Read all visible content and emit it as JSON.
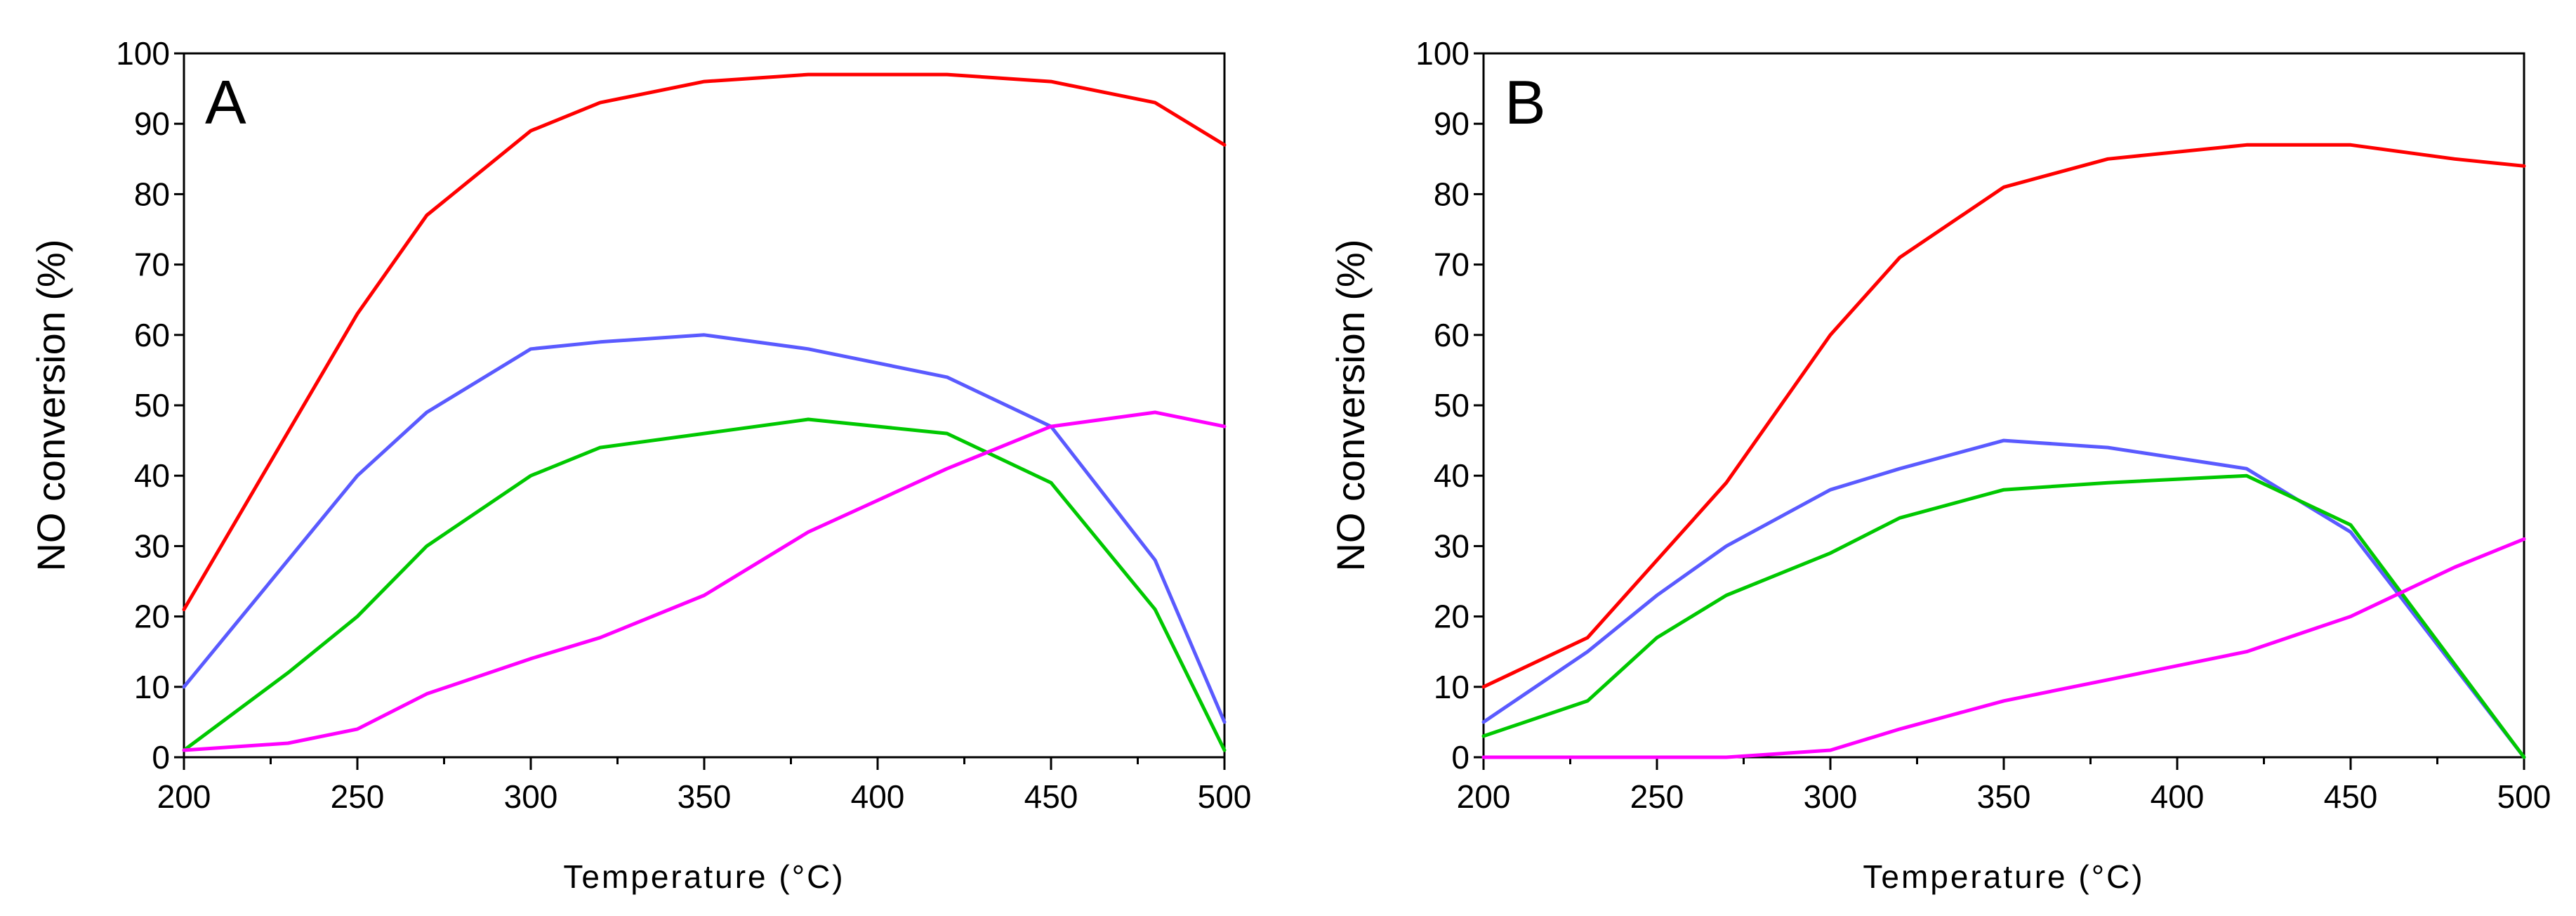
{
  "chart_data": [
    {
      "type": "line",
      "panel_label": "A",
      "xlabel": "Temperature (°C)",
      "ylabel": "NO conversion (%)",
      "xlim": [
        200,
        500
      ],
      "ylim": [
        0,
        100
      ],
      "xticks": [
        200,
        250,
        300,
        350,
        400,
        450,
        500
      ],
      "yticks": [
        0,
        10,
        20,
        30,
        40,
        50,
        60,
        70,
        80,
        90,
        100
      ],
      "series": [
        {
          "color": "#ff0000",
          "x": [
            200,
            250,
            270,
            300,
            320,
            350,
            380,
            420,
            450,
            480,
            500
          ],
          "y": [
            21,
            63,
            77,
            89,
            93,
            96,
            97,
            97,
            96,
            93,
            87
          ]
        },
        {
          "color": "#5a5aff",
          "x": [
            200,
            250,
            270,
            300,
            320,
            350,
            380,
            420,
            450,
            480,
            500
          ],
          "y": [
            10,
            40,
            49,
            58,
            59,
            60,
            58,
            54,
            47,
            28,
            5
          ]
        },
        {
          "color": "#00c800",
          "x": [
            200,
            230,
            250,
            270,
            300,
            320,
            350,
            380,
            420,
            450,
            480,
            500
          ],
          "y": [
            1,
            12,
            20,
            30,
            40,
            44,
            46,
            48,
            46,
            39,
            21,
            1
          ]
        },
        {
          "color": "#ff00ff",
          "x": [
            200,
            230,
            250,
            270,
            300,
            320,
            350,
            380,
            420,
            450,
            480,
            500
          ],
          "y": [
            1,
            2,
            4,
            9,
            14,
            17,
            23,
            32,
            41,
            47,
            49,
            47
          ]
        }
      ]
    },
    {
      "type": "line",
      "panel_label": "B",
      "xlabel": "Temperature (°C)",
      "ylabel": "NO conversion (%)",
      "xlim": [
        200,
        500
      ],
      "ylim": [
        0,
        100
      ],
      "xticks": [
        200,
        250,
        300,
        350,
        400,
        450,
        500
      ],
      "yticks": [
        0,
        10,
        20,
        30,
        40,
        50,
        60,
        70,
        80,
        90,
        100
      ],
      "series": [
        {
          "color": "#ff0000",
          "x": [
            200,
            230,
            270,
            300,
            320,
            350,
            380,
            420,
            450,
            480,
            500
          ],
          "y": [
            10,
            17,
            39,
            60,
            71,
            81,
            85,
            87,
            87,
            85,
            84
          ]
        },
        {
          "color": "#5a5aff",
          "x": [
            200,
            230,
            250,
            270,
            300,
            320,
            350,
            380,
            420,
            450,
            500
          ],
          "y": [
            5,
            15,
            23,
            30,
            38,
            41,
            45,
            44,
            41,
            32,
            0
          ]
        },
        {
          "color": "#00c800",
          "x": [
            200,
            230,
            250,
            270,
            300,
            320,
            350,
            380,
            420,
            450,
            500
          ],
          "y": [
            3,
            8,
            17,
            23,
            29,
            34,
            38,
            39,
            40,
            33,
            0
          ]
        },
        {
          "color": "#ff00ff",
          "x": [
            200,
            230,
            250,
            270,
            300,
            320,
            350,
            380,
            420,
            450,
            480,
            500
          ],
          "y": [
            0,
            0,
            0,
            0,
            1,
            4,
            8,
            11,
            15,
            20,
            27,
            31
          ]
        }
      ]
    }
  ]
}
